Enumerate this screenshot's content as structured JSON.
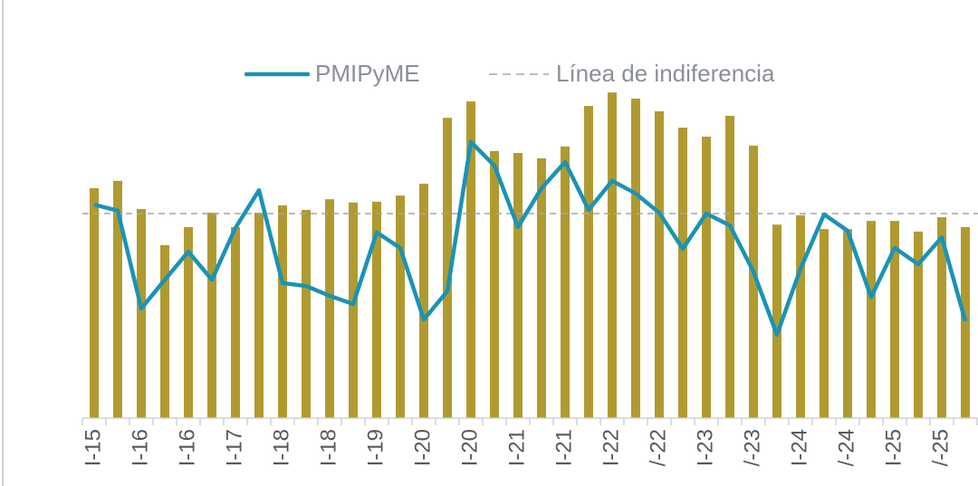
{
  "chart_data": {
    "type": "bar_line",
    "categories": [
      "I-15",
      null,
      "I-16",
      null,
      "I-16",
      null,
      "I-17",
      null,
      "I-18",
      null,
      "I-18",
      null,
      "I-19",
      null,
      "I-20",
      null,
      "I-20",
      null,
      "I-21",
      null,
      "I-21",
      null,
      "I-22",
      null,
      "/-22",
      null,
      "I-23",
      null,
      "/-23",
      null,
      "I-24",
      null,
      "/-24",
      null,
      "I-25",
      null,
      "/-25",
      null
    ],
    "bars": {
      "color": "#b09a30",
      "values": [
        56.2,
        58.0,
        51.1,
        42.3,
        46.7,
        50.2,
        46.7,
        50.2,
        52.0,
        50.9,
        53.5,
        52.7,
        52.9,
        54.4,
        57.3,
        73.4,
        77.4,
        65.3,
        64.8,
        63.5,
        66.4,
        76.3,
        79.6,
        78.1,
        75.0,
        71.0,
        68.8,
        73.9,
        66.6,
        47.3,
        49.6,
        46.2,
        46.2,
        48.2,
        48.2,
        45.6,
        49.1,
        46.7
      ]
    },
    "series": [
      {
        "name": "PMIPyME",
        "color": "#1a93b6",
        "values": [
          52.2,
          50.7,
          26.8,
          33.8,
          40.7,
          33.8,
          46.5,
          55.7,
          33.0,
          32.3,
          29.9,
          27.9,
          45.4,
          41.6,
          24.1,
          31.0,
          67.5,
          61.7,
          46.7,
          56.2,
          62.6,
          50.9,
          58.0,
          54.9,
          50.2,
          41.4,
          50.0,
          47.1,
          35.8,
          20.4,
          36.5,
          49.8,
          45.8,
          29.6,
          41.6,
          37.6,
          44.2,
          23.7
        ]
      }
    ],
    "reference": {
      "name": "Línea de indiferencia",
      "value": 50,
      "color": "#a6a6a6"
    },
    "ylim": [
      0,
      102.2
    ]
  }
}
